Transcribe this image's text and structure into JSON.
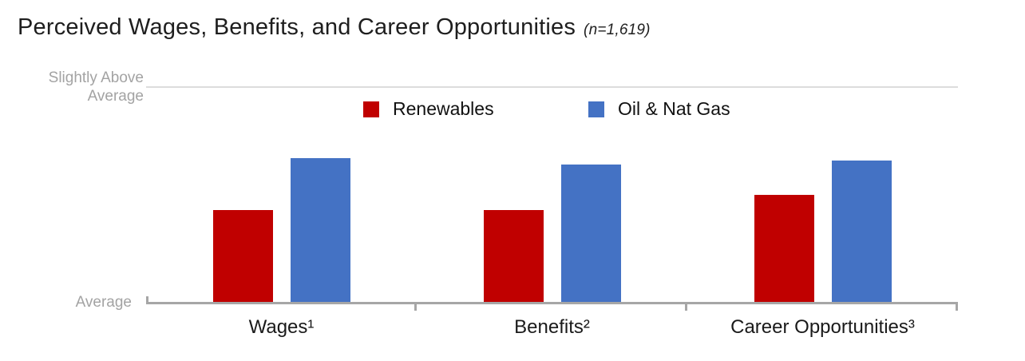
{
  "title": {
    "text": "Perceived Wages, Benefits, and Career Opportunities",
    "note": "(n=1,619)"
  },
  "y_axis": {
    "top_label_lines": [
      "Slightly Above",
      "Average"
    ],
    "bottom_label": "Average",
    "label_color": "#a3a3a3"
  },
  "legend": {
    "items": [
      {
        "label": "Renewables",
        "color": "#c00000"
      },
      {
        "label": "Oil & Nat Gas",
        "color": "#4472c4"
      }
    ]
  },
  "chart_data": {
    "type": "bar",
    "title": "Perceived Wages, Benefits, and Career Opportunities (n=1,619)",
    "sample_size": "n=1,619",
    "categories": [
      "Wages¹",
      "Benefits²",
      "Career Opportunities³"
    ],
    "series": [
      {
        "name": "Renewables",
        "color": "#c00000",
        "values": [
          0.43,
          0.43,
          0.5
        ]
      },
      {
        "name": "Oil & Nat Gas",
        "color": "#4472c4",
        "values": [
          0.67,
          0.64,
          0.66
        ]
      }
    ],
    "units": "fraction of distance from 'Average' (0) to 'Slightly Above Average' (1)",
    "ylim": [
      0,
      1
    ],
    "y_tick_labels": [
      "Average",
      "Slightly Above Average"
    ],
    "xlabel": "",
    "ylabel": "",
    "grid": "single light horizontal gridline at 'Slightly Above Average' level",
    "legend_position": "top center, below top gridline",
    "axis_colors": {
      "baseline": "#a6a6a6",
      "gridline": "#dcdcdc"
    }
  }
}
